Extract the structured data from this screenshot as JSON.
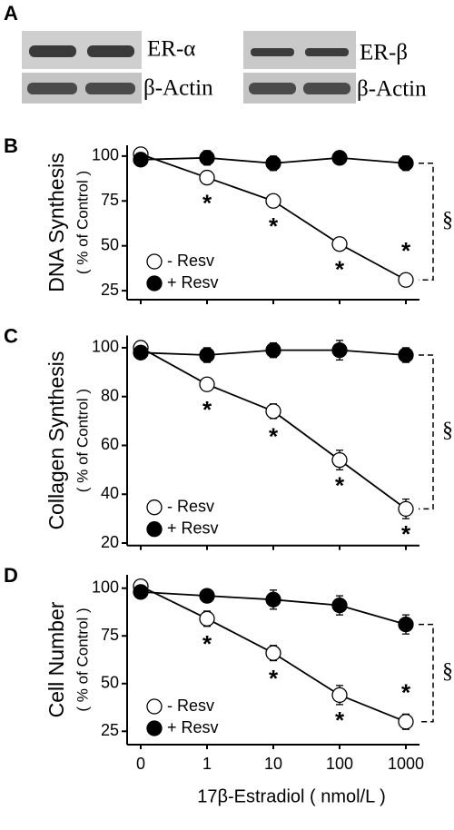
{
  "blots": {
    "panel": "A",
    "labels": [
      "ER-α",
      "β-Actin",
      "ER-β",
      "β-Actin"
    ]
  },
  "chart_data": [
    {
      "type": "line",
      "panel": "B",
      "ylabel": "DNA Synthesis",
      "ylabel_sub": "( % of Control )",
      "categories": [
        null,
        null,
        null,
        null,
        null
      ],
      "ylim": [
        20,
        106
      ],
      "yticks": [
        25,
        50,
        75,
        100
      ],
      "series": [
        {
          "name": "- Resv",
          "color": "#ffffff",
          "values": [
            101,
            88,
            75,
            51,
            31
          ],
          "errors": [
            2,
            3,
            3,
            3,
            3
          ]
        },
        {
          "name": "+ Resv",
          "color": "#000000",
          "values": [
            98,
            99,
            96,
            99,
            96
          ],
          "errors": [
            2,
            4,
            4,
            3,
            4
          ]
        }
      ],
      "significant": [
        null,
        "*",
        "*",
        "*",
        "*"
      ],
      "bracket_label": "§",
      "legend": "lower left"
    },
    {
      "type": "line",
      "panel": "C",
      "ylabel": "Collagen Synthesis",
      "ylabel_sub": "( % of Control )",
      "categories": [
        null,
        null,
        null,
        null,
        null
      ],
      "ylim": [
        19,
        105
      ],
      "yticks": [
        20,
        40,
        60,
        80,
        100
      ],
      "series": [
        {
          "name": "- Resv",
          "color": "#ffffff",
          "values": [
            100,
            85,
            74,
            54,
            34
          ],
          "errors": [
            2,
            2,
            3,
            4,
            4
          ]
        },
        {
          "name": "+ Resv",
          "color": "#000000",
          "values": [
            98,
            97,
            99,
            99,
            97
          ],
          "errors": [
            2,
            3,
            3,
            4,
            3
          ]
        }
      ],
      "significant": [
        null,
        "*",
        "*",
        "*",
        "*"
      ],
      "bracket_label": "§",
      "legend": "lower left"
    },
    {
      "type": "line",
      "panel": "D",
      "ylabel": "Cell Number",
      "ylabel_sub": "( % of Control )",
      "xlabel": "17β-Estradiol ( nmol/L )",
      "categories": [
        "0",
        "1",
        "10",
        "100",
        "1000"
      ],
      "ylim": [
        18,
        107
      ],
      "yticks": [
        25,
        50,
        75,
        100
      ],
      "series": [
        {
          "name": "- Resv",
          "color": "#ffffff",
          "values": [
            101,
            84,
            66,
            44,
            30
          ],
          "errors": [
            2,
            4,
            4,
            5,
            4
          ]
        },
        {
          "name": "+ Resv",
          "color": "#000000",
          "values": [
            98,
            96,
            94,
            91,
            81
          ],
          "errors": [
            2,
            3,
            5,
            5,
            5
          ]
        }
      ],
      "significant": [
        null,
        "*",
        "*",
        "*",
        "*"
      ],
      "bracket_label": "§",
      "legend": "lower left"
    }
  ]
}
